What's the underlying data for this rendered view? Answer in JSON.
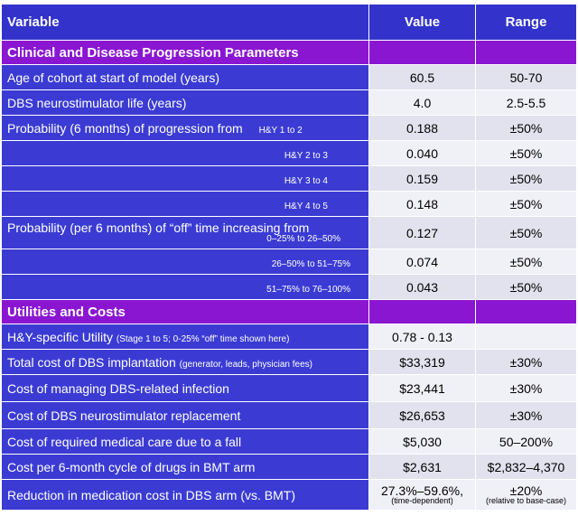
{
  "headers": {
    "variable": "Variable",
    "value": "Value",
    "range": "Range"
  },
  "sections": {
    "clinical": "Clinical and Disease Progression Parameters",
    "utilities": "Utilities and Costs"
  },
  "rows": {
    "age": {
      "label": "Age of cohort at start of model (years)",
      "value": "60.5",
      "range": "50-70"
    },
    "dbs_life": {
      "label": "DBS neurostimulator life (years)",
      "value": "4.0",
      "range": "2.5-5.5"
    },
    "prog_label": "Probability (6 months) of progression from",
    "prog": [
      {
        "stage": "H&Y 1 to 2",
        "value": "0.188",
        "range": "±50%"
      },
      {
        "stage": "H&Y 2 to 3",
        "value": "0.040",
        "range": "±50%"
      },
      {
        "stage": "H&Y 3 to 4",
        "value": "0.159",
        "range": "±50%"
      },
      {
        "stage": "H&Y 4 to 5",
        "value": "0.148",
        "range": "±50%"
      }
    ],
    "off_label": "Probability (per 6 months) of “off” time increasing from",
    "off": [
      {
        "stage": "0–25% to 26–50%",
        "value": "0.127",
        "range": "±50%"
      },
      {
        "stage": "26–50% to 51–75%",
        "value": "0.074",
        "range": "±50%"
      },
      {
        "stage": "51–75% to 76–100%",
        "value": "0.043",
        "range": "±50%"
      }
    ],
    "utility": {
      "label": "H&Y-specific Utility",
      "note": "(Stage 1 to 5; 0-25% “off” time shown here)",
      "value": "0.78 - 0.13",
      "range": ""
    },
    "dbs_cost": {
      "label": "Total cost of DBS implantation",
      "note": "(generator, leads, physician fees)",
      "value": "$33,319",
      "range": "±30%"
    },
    "infection": {
      "label": "Cost of managing DBS-related infection",
      "value": "$23,441",
      "range": "±30%"
    },
    "replacement": {
      "label": "Cost of DBS neurostimulator replacement",
      "value": "$26,653",
      "range": "±30%"
    },
    "fall": {
      "label": "Cost of required medical care due to a fall",
      "value": "$5,030",
      "range": "50–200%"
    },
    "bmt_drugs": {
      "label": "Cost per 6-month cycle of drugs in BMT arm",
      "value": "$2,631",
      "range": "$2,832–4,370"
    },
    "reduction": {
      "label": "Reduction in medication cost in DBS arm (vs. BMT)",
      "value": "27.3%–59.6%,",
      "value_note": "(time-dependent)",
      "range": "±20%",
      "range_note": "(relative to base-case)"
    }
  }
}
